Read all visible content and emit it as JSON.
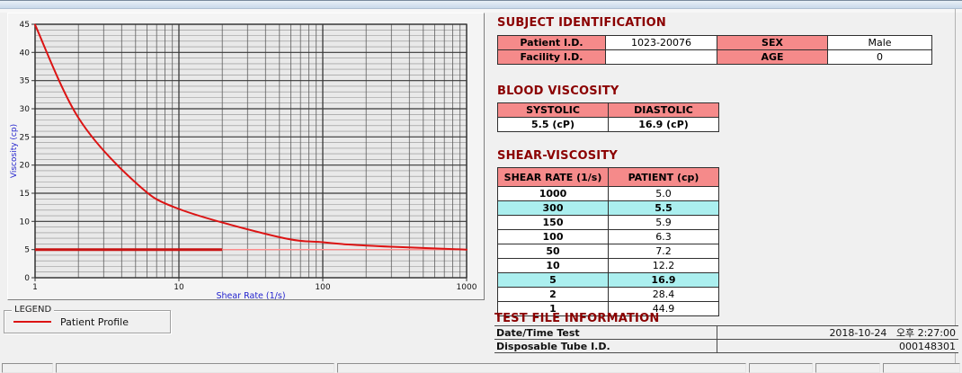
{
  "chart_data": {
    "type": "line",
    "title": "",
    "xlabel": "Shear Rate (1/s)",
    "ylabel": "Viscosity (cp)",
    "x_scale": "log",
    "xlim": [
      1,
      1000
    ],
    "ylim": [
      0,
      45
    ],
    "x_major_ticks": [
      1,
      10,
      100,
      1000
    ],
    "y_major_ticks": [
      0,
      5,
      10,
      15,
      20,
      25,
      30,
      35,
      40,
      45
    ],
    "y_minor_step": 1,
    "grid": true,
    "axis_label_color": "#2323CD",
    "plot_bg": "#E9E9E9",
    "series": [
      {
        "name": "Patient Profile",
        "color": "#DC1414",
        "x": [
          1,
          2,
          5,
          10,
          50,
          100,
          150,
          300,
          1000
        ],
        "y": [
          44.9,
          28.4,
          16.9,
          12.2,
          7.2,
          6.3,
          5.9,
          5.5,
          5.0
        ]
      }
    ],
    "reference_line": {
      "value": 5.0,
      "color": "#FF8C8C",
      "thick_segment_x": [
        1,
        20
      ],
      "thick_color": "#C81414"
    },
    "legend": {
      "box_title": "LEGEND",
      "position": "bottom-left",
      "items": [
        {
          "label": "Patient Profile",
          "color": "#DC1414"
        }
      ]
    }
  },
  "sections": {
    "subject": {
      "title": "SUBJECT IDENTIFICATION",
      "rows": [
        [
          {
            "t": "Patient I.D.",
            "h": 1
          },
          {
            "t": "1023-20076",
            "h": 0
          },
          {
            "t": "SEX",
            "h": 1
          },
          {
            "t": "Male",
            "h": 0
          }
        ],
        [
          {
            "t": "Facility I.D.",
            "h": 1
          },
          {
            "t": "",
            "h": 0
          },
          {
            "t": "AGE",
            "h": 1
          },
          {
            "t": "0",
            "h": 0
          }
        ]
      ]
    },
    "blood": {
      "title": "BLOOD VISCOSITY",
      "headers": [
        "SYSTOLIC",
        "DIASTOLIC"
      ],
      "values": [
        "5.5 (cP)",
        "16.9 (cP)"
      ]
    },
    "shear": {
      "title": "SHEAR-VISCOSITY",
      "headers": [
        "SHEAR RATE (1/s)",
        "PATIENT (cp)"
      ],
      "rows": [
        {
          "rate": "1000",
          "value": "5.0",
          "highlight": false
        },
        {
          "rate": "300",
          "value": "5.5",
          "highlight": true
        },
        {
          "rate": "150",
          "value": "5.9",
          "highlight": false
        },
        {
          "rate": "100",
          "value": "6.3",
          "highlight": false
        },
        {
          "rate": "50",
          "value": "7.2",
          "highlight": false
        },
        {
          "rate": "10",
          "value": "12.2",
          "highlight": false
        },
        {
          "rate": "5",
          "value": "16.9",
          "highlight": true
        },
        {
          "rate": "2",
          "value": "28.4",
          "highlight": false
        },
        {
          "rate": "1",
          "value": "44.9",
          "highlight": false
        }
      ]
    },
    "testfile": {
      "title": "TEST FILE INFORMATION",
      "rows": [
        {
          "label": "Date/Time Test",
          "value": "2018-10-24   오후 2:27:00"
        },
        {
          "label": "Disposable Tube I.D.",
          "value": "000148301"
        }
      ]
    }
  },
  "colors": {
    "accent_pink": "#F58A8A",
    "highlight_cyan": "#ABEFEF",
    "title_red": "#8B0000"
  }
}
